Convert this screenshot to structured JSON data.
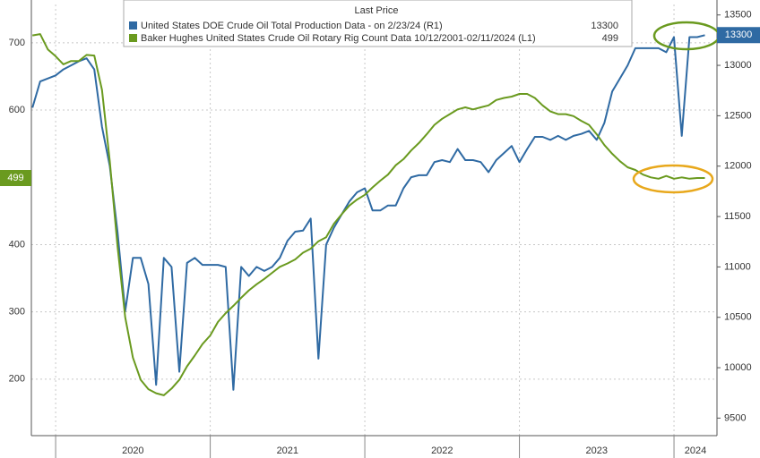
{
  "chart_data": {
    "type": "line",
    "legend_title": "Last Price",
    "x": [
      2019.85,
      2019.9,
      2019.95,
      2020.0,
      2020.05,
      2020.1,
      2020.15,
      2020.2,
      2020.25,
      2020.3,
      2020.35,
      2020.4,
      2020.45,
      2020.5,
      2020.55,
      2020.6,
      2020.65,
      2020.7,
      2020.75,
      2020.8,
      2020.85,
      2020.9,
      2020.95,
      2021.0,
      2021.05,
      2021.1,
      2021.15,
      2021.2,
      2021.25,
      2021.3,
      2021.35,
      2021.4,
      2021.45,
      2021.5,
      2021.55,
      2021.6,
      2021.65,
      2021.7,
      2021.75,
      2021.8,
      2021.85,
      2021.9,
      2021.95,
      2022.0,
      2022.05,
      2022.1,
      2022.15,
      2022.2,
      2022.25,
      2022.3,
      2022.35,
      2022.4,
      2022.45,
      2022.5,
      2022.55,
      2022.6,
      2022.65,
      2022.7,
      2022.75,
      2022.8,
      2022.85,
      2022.9,
      2022.95,
      2023.0,
      2023.05,
      2023.1,
      2023.15,
      2023.2,
      2023.25,
      2023.3,
      2023.35,
      2023.4,
      2023.45,
      2023.5,
      2023.55,
      2023.6,
      2023.65,
      2023.7,
      2023.75,
      2023.8,
      2023.85,
      2023.9,
      2023.95,
      2024.0,
      2024.05,
      2024.1,
      2024.15,
      2024.2
    ],
    "series": [
      {
        "name": "United States DOE Crude Oil Total Production Data - on 2/23/24 (R1)",
        "color": "#2f6aa3",
        "axis": "y2",
        "values": [
          12580,
          12840,
          12870,
          12900,
          12960,
          13000,
          13040,
          13070,
          12960,
          12390,
          12000,
          11350,
          10560,
          11090,
          11090,
          10830,
          9830,
          11090,
          11000,
          9960,
          11040,
          11090,
          11020,
          11020,
          11020,
          11000,
          9780,
          11000,
          10910,
          11000,
          10960,
          11000,
          11090,
          11260,
          11350,
          11360,
          11480,
          10090,
          11220,
          11390,
          11520,
          11650,
          11740,
          11780,
          11560,
          11560,
          11610,
          11610,
          11780,
          11890,
          11910,
          11910,
          12040,
          12060,
          12040,
          12170,
          12060,
          12060,
          12040,
          11940,
          12060,
          12130,
          12200,
          12040,
          12170,
          12290,
          12290,
          12260,
          12300,
          12260,
          12300,
          12320,
          12350,
          12260,
          12430,
          12740,
          12870,
          13000,
          13170,
          13170,
          13170,
          13170,
          13130,
          13280,
          12300,
          13280,
          13280,
          13300
        ]
      },
      {
        "name": "Baker Hughes United States Crude Oil Rotary Rig Count Data 10/12/2001-02/11/2024 (L1)",
        "color": "#6a9a1f",
        "axis": "y",
        "values": [
          711,
          713,
          690,
          680,
          668,
          673,
          673,
          682,
          681,
          630,
          524,
          398,
          292,
          232,
          199,
          185,
          179,
          176,
          186,
          199,
          219,
          235,
          252,
          265,
          285,
          298,
          309,
          321,
          332,
          341,
          349,
          358,
          367,
          372,
          378,
          388,
          394,
          405,
          411,
          431,
          445,
          458,
          467,
          474,
          485,
          495,
          504,
          518,
          527,
          540,
          551,
          564,
          578,
          587,
          594,
          601,
          604,
          601,
          604,
          607,
          615,
          618,
          620,
          624,
          624,
          618,
          607,
          598,
          594,
          594,
          591,
          584,
          578,
          564,
          548,
          535,
          524,
          515,
          511,
          504,
          500,
          498,
          502,
          498,
          500,
          498,
          499,
          499
        ]
      }
    ],
    "xlim": [
      2019.843,
      2024.278
    ],
    "xticks": [
      2020,
      2021,
      2022,
      2023,
      2024
    ],
    "ylim": [
      116,
      757
    ],
    "yticks": [
      200,
      300,
      400,
      600,
      700
    ],
    "y2lim": [
      9326,
      13604
    ],
    "y2ticks": [
      9500,
      10000,
      10500,
      11000,
      11500,
      12000,
      12500,
      13000,
      13500
    ],
    "grid": true
  }
}
